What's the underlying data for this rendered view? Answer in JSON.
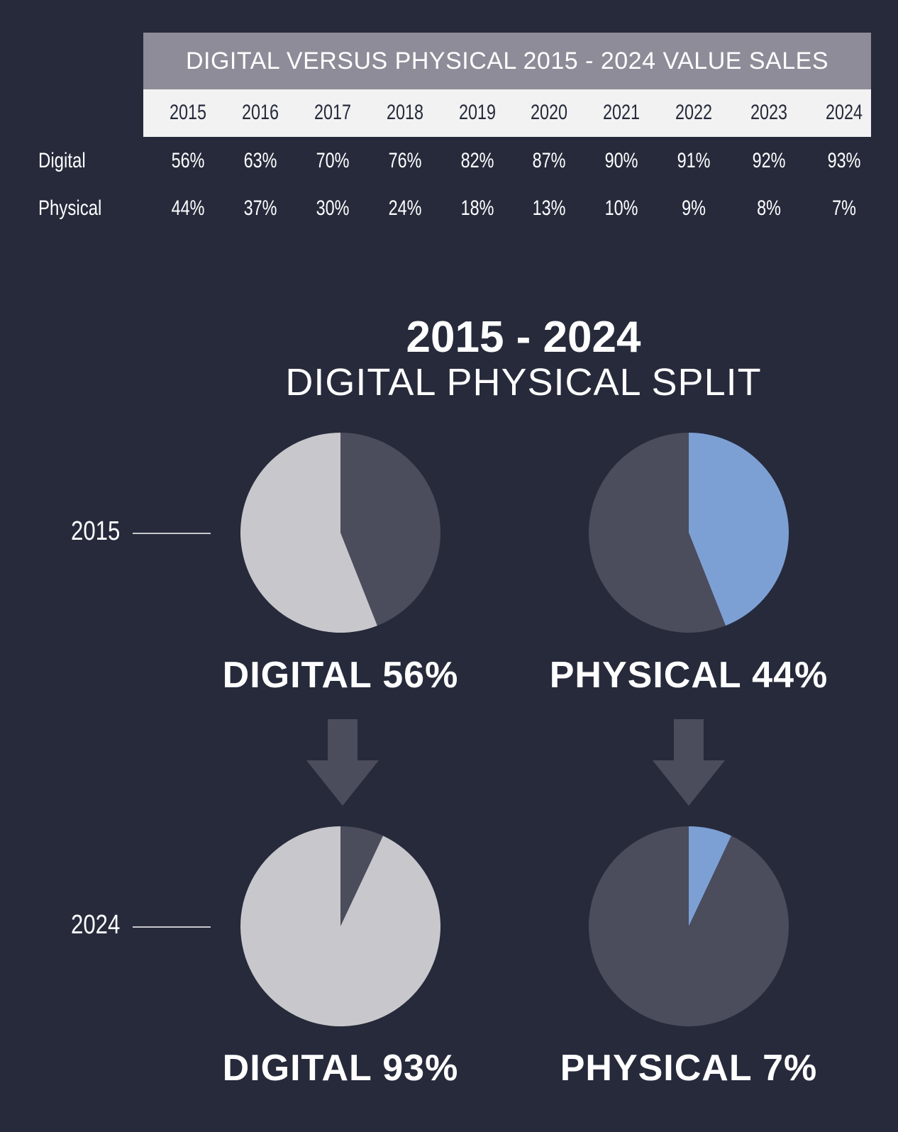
{
  "chart_data": [
    {
      "type": "table",
      "title": "DIGITAL VERSUS PHYSICAL 2015 - 2024 VALUE SALES",
      "columns": [
        "2015",
        "2016",
        "2017",
        "2018",
        "2019",
        "2020",
        "2021",
        "2022",
        "2023",
        "2024"
      ],
      "rows": [
        {
          "label": "Digital",
          "values": [
            "56%",
            "63%",
            "70%",
            "76%",
            "82%",
            "87%",
            "90%",
            "91%",
            "92%",
            "93%"
          ]
        },
        {
          "label": "Physical",
          "values": [
            "44%",
            "37%",
            "30%",
            "24%",
            "18%",
            "13%",
            "10%",
            "9%",
            "8%",
            "7%"
          ]
        }
      ]
    },
    {
      "type": "pie",
      "title": "2015 - 2024",
      "subtitle": "DIGITAL PHYSICAL SPLIT",
      "pies": [
        {
          "year": "2015",
          "highlight": "digital",
          "value": 56,
          "label": "DIGITAL 56%"
        },
        {
          "year": "2015",
          "highlight": "physical",
          "value": 44,
          "label": "PHYSICAL 44%"
        },
        {
          "year": "2024",
          "highlight": "digital",
          "value": 93,
          "label": "DIGITAL 93%"
        },
        {
          "year": "2024",
          "highlight": "physical",
          "value": 7,
          "label": "PHYSICAL 7%"
        }
      ],
      "row_labels": [
        "2015",
        "2024"
      ]
    }
  ],
  "colors": {
    "background": "#262a3b",
    "table_header": "#8e8c98",
    "year_strip": "#f2f2f2",
    "digital": "#c8c8cc",
    "physical": "#7da0d4",
    "remainder": "#4b4c5c",
    "arrow": "#4b4c5c"
  }
}
